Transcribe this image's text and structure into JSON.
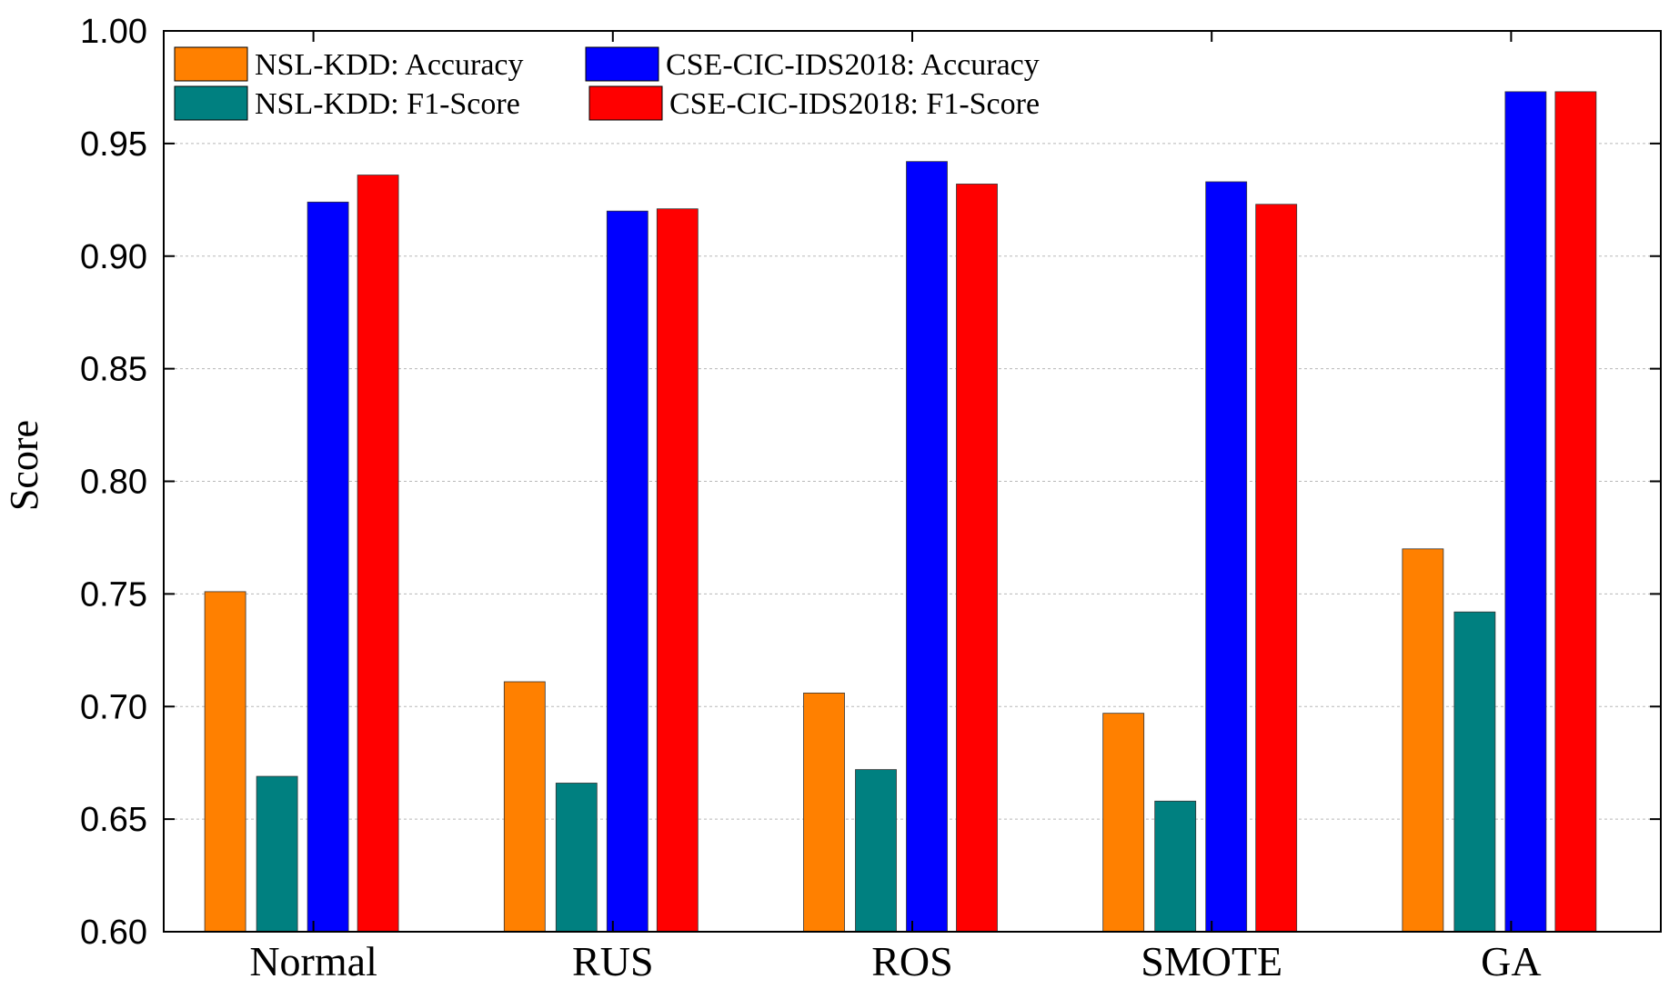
{
  "chart_data": {
    "type": "bar",
    "title": "",
    "xlabel": "",
    "ylabel": "Score",
    "ylim": [
      0.6,
      1.0
    ],
    "yticks": [
      "0.60",
      "0.65",
      "0.70",
      "0.75",
      "0.80",
      "0.85",
      "0.90",
      "0.95",
      "1.00"
    ],
    "grid": true,
    "legend_position": "top-left",
    "categories": [
      "Normal",
      "RUS",
      "ROS",
      "SMOTE",
      "GA"
    ],
    "series": [
      {
        "name": "NSL-KDD: Accuracy",
        "color": "#ff8000",
        "values": [
          0.751,
          0.711,
          0.706,
          0.697,
          0.77
        ]
      },
      {
        "name": "NSL-KDD: F1-Score",
        "color": "#008080",
        "values": [
          0.669,
          0.666,
          0.672,
          0.658,
          0.742
        ]
      },
      {
        "name": "CSE-CIC-IDS2018: Accuracy",
        "color": "#0000ff",
        "values": [
          0.924,
          0.92,
          0.942,
          0.933,
          0.973
        ]
      },
      {
        "name": "CSE-CIC-IDS2018: F1-Score",
        "color": "#ff0000",
        "values": [
          0.936,
          0.921,
          0.932,
          0.923,
          0.973
        ]
      }
    ]
  }
}
